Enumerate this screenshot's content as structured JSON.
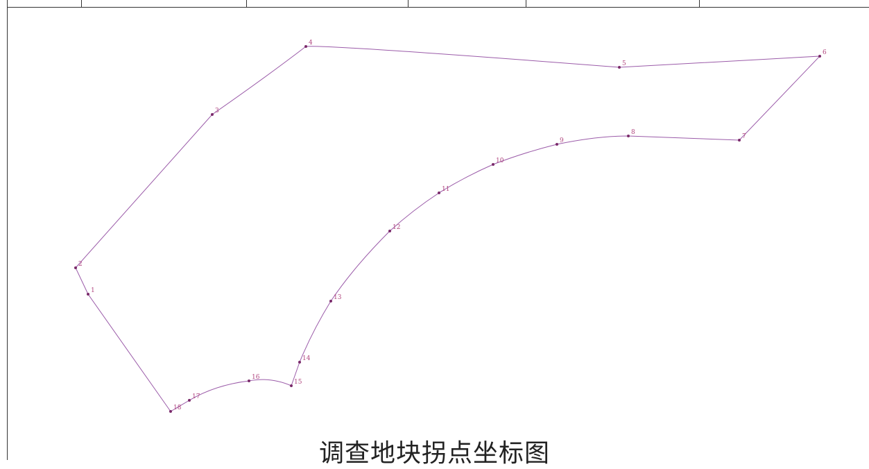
{
  "title": "调查地块拐点坐标图",
  "colors": {
    "boundary": "#9a5aa8",
    "point": "#7a2a6a",
    "label": "#b0457e",
    "frame": "#333333"
  },
  "points": [
    {
      "label": "1"
    },
    {
      "label": "2"
    },
    {
      "label": "3"
    },
    {
      "label": "4"
    },
    {
      "label": "5"
    },
    {
      "label": "6"
    },
    {
      "label": "7"
    },
    {
      "label": "8"
    },
    {
      "label": "9"
    },
    {
      "label": "10"
    },
    {
      "label": "11"
    },
    {
      "label": "12"
    },
    {
      "label": "13"
    },
    {
      "label": "14"
    },
    {
      "label": "15"
    },
    {
      "label": "16"
    },
    {
      "label": "17"
    },
    {
      "label": "18"
    }
  ]
}
